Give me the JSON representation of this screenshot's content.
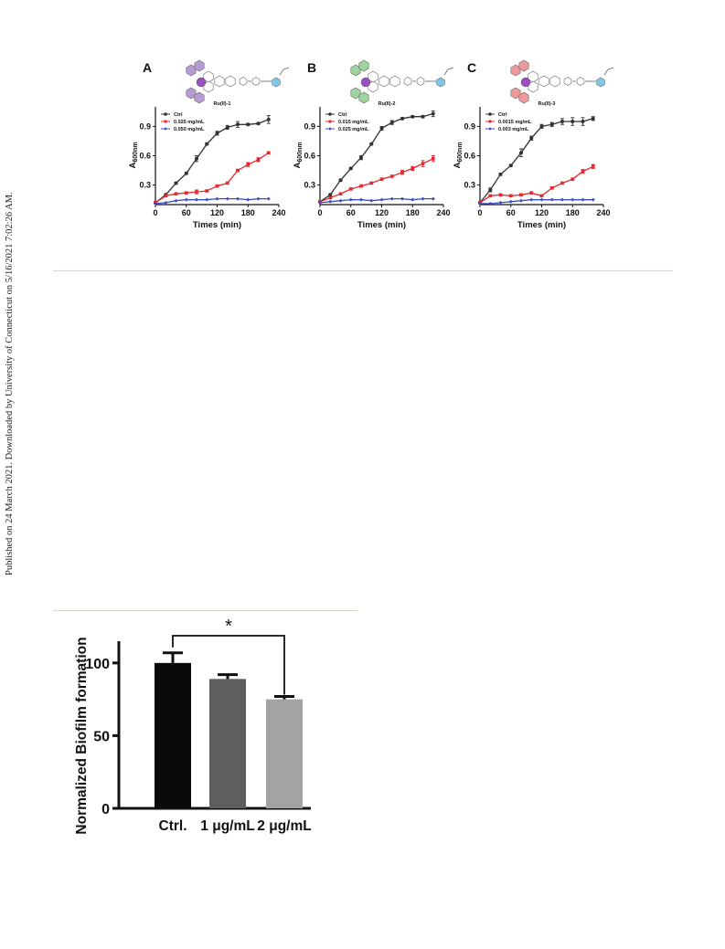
{
  "sidebar": {
    "published_note": "Published on 24 March 2021. Downloaded by University of Connecticut on 5/16/2021 7:02:26 AM."
  },
  "panels": [
    {
      "letter": "A",
      "compound": "Ru(II)-1",
      "lobe_color": "#b69bd4",
      "xlabel": "Times (min)",
      "ylabel": "A",
      "ylabel_sub": "600nm",
      "xticks": [
        "0",
        "60",
        "120",
        "180",
        "240"
      ],
      "yticks": [
        "0.3",
        "0.6",
        "0.9"
      ],
      "legend": [
        "Ctrl",
        "0.025 mg/mL",
        "0.050 mg/mL"
      ]
    },
    {
      "letter": "B",
      "compound": "Ru(II)-2",
      "lobe_color": "#9fd49c",
      "xlabel": "Times (min)",
      "ylabel": "A",
      "ylabel_sub": "600nm",
      "xticks": [
        "0",
        "60",
        "120",
        "180",
        "240"
      ],
      "yticks": [
        "0.3",
        "0.6",
        "0.9"
      ],
      "legend": [
        "Ctrl",
        "0.015 mg/mL",
        "0.025 mg/mL"
      ]
    },
    {
      "letter": "C",
      "compound": "Ru(II)-3",
      "lobe_color": "#ef9a9a",
      "xlabel": "Times (min)",
      "ylabel": "A",
      "ylabel_sub": "600nm",
      "xticks": [
        "0",
        "60",
        "120",
        "180",
        "240"
      ],
      "yticks": [
        "0.3",
        "0.6",
        "0.9"
      ],
      "legend": [
        "Ctrl",
        "0.0015 mg/mL",
        "0.003 mg/mL"
      ]
    }
  ],
  "bar_chart": {
    "ylabel": "Normalized Biofilm formation",
    "yticks": [
      "0",
      "50",
      "100"
    ],
    "categories": [
      "Ctrl.",
      "1 μg/mL",
      "2 μg/mL"
    ],
    "significance": "*"
  },
  "colors": {
    "ctrl": "#333333",
    "low": "#e8282d",
    "high": "#3b4cc0",
    "bar_ctrl": "#0a0a0a",
    "bar_1": "#5e5e5e",
    "bar_2": "#a3a3a6"
  },
  "chart_data": [
    {
      "type": "line",
      "title": "A",
      "xlabel": "Times (min)",
      "ylabel": "A600nm",
      "xlim": [
        0,
        240
      ],
      "ylim": [
        0.1,
        1.1
      ],
      "series": [
        {
          "name": "Ctrl",
          "x": [
            0,
            20,
            40,
            60,
            80,
            100,
            120,
            140,
            160,
            180,
            200,
            220
          ],
          "y": [
            0.12,
            0.2,
            0.32,
            0.42,
            0.57,
            0.72,
            0.83,
            0.89,
            0.92,
            0.92,
            0.93,
            0.97
          ],
          "err": [
            0.01,
            0.01,
            0.01,
            0.01,
            0.03,
            0.01,
            0.02,
            0.02,
            0.03,
            0.01,
            0.01,
            0.04
          ]
        },
        {
          "name": "0.025 mg/mL",
          "x": [
            0,
            20,
            40,
            60,
            80,
            100,
            120,
            140,
            160,
            180,
            200,
            220
          ],
          "y": [
            0.12,
            0.19,
            0.21,
            0.22,
            0.23,
            0.24,
            0.29,
            0.32,
            0.45,
            0.51,
            0.56,
            0.63
          ],
          "err": [
            0.01,
            0.01,
            0.01,
            0.01,
            0.02,
            0.01,
            0.01,
            0.01,
            0.01,
            0.02,
            0.02,
            0.01
          ]
        },
        {
          "name": "0.050 mg/mL",
          "x": [
            0,
            20,
            40,
            60,
            80,
            100,
            120,
            140,
            160,
            180,
            200,
            220
          ],
          "y": [
            0.11,
            0.12,
            0.14,
            0.15,
            0.15,
            0.15,
            0.16,
            0.16,
            0.16,
            0.15,
            0.16,
            0.16
          ],
          "err": [
            0,
            0,
            0,
            0,
            0,
            0,
            0,
            0,
            0,
            0,
            0,
            0
          ]
        }
      ],
      "legend": [
        "Ctrl",
        "0.025 mg/mL",
        "0.050 mg/mL"
      ]
    },
    {
      "type": "line",
      "title": "B",
      "xlabel": "Times (min)",
      "ylabel": "A600nm",
      "xlim": [
        0,
        240
      ],
      "ylim": [
        0.1,
        1.1
      ],
      "series": [
        {
          "name": "Ctrl",
          "x": [
            0,
            20,
            40,
            60,
            80,
            100,
            120,
            140,
            160,
            180,
            200,
            220
          ],
          "y": [
            0.13,
            0.2,
            0.35,
            0.47,
            0.58,
            0.72,
            0.88,
            0.94,
            0.98,
            1.0,
            1.0,
            1.03
          ],
          "err": [
            0.01,
            0.01,
            0.01,
            0.01,
            0.02,
            0.01,
            0.02,
            0.02,
            0.01,
            0.01,
            0.01,
            0.03
          ]
        },
        {
          "name": "0.015 mg/mL",
          "x": [
            0,
            20,
            40,
            60,
            80,
            100,
            120,
            140,
            160,
            180,
            200,
            220
          ],
          "y": [
            0.13,
            0.17,
            0.21,
            0.26,
            0.29,
            0.32,
            0.36,
            0.39,
            0.43,
            0.47,
            0.52,
            0.57
          ],
          "err": [
            0.01,
            0.01,
            0.01,
            0.01,
            0.01,
            0.01,
            0.01,
            0.01,
            0.02,
            0.02,
            0.03,
            0.03
          ]
        },
        {
          "name": "0.025 mg/mL",
          "x": [
            0,
            20,
            40,
            60,
            80,
            100,
            120,
            140,
            160,
            180,
            200,
            220
          ],
          "y": [
            0.12,
            0.13,
            0.14,
            0.15,
            0.15,
            0.14,
            0.15,
            0.16,
            0.16,
            0.15,
            0.16,
            0.16
          ],
          "err": [
            0,
            0,
            0,
            0,
            0,
            0,
            0,
            0,
            0,
            0,
            0,
            0
          ]
        }
      ],
      "legend": [
        "Ctrl",
        "0.015 mg/mL",
        "0.025 mg/mL"
      ]
    },
    {
      "type": "line",
      "title": "C",
      "xlabel": "Times (min)",
      "ylabel": "A600nm",
      "xlim": [
        0,
        240
      ],
      "ylim": [
        0.1,
        1.1
      ],
      "series": [
        {
          "name": "Ctrl",
          "x": [
            0,
            20,
            40,
            60,
            80,
            100,
            120,
            140,
            160,
            180,
            200,
            220
          ],
          "y": [
            0.12,
            0.25,
            0.41,
            0.5,
            0.63,
            0.78,
            0.9,
            0.92,
            0.95,
            0.95,
            0.95,
            0.98
          ],
          "err": [
            0.01,
            0.02,
            0.01,
            0.01,
            0.04,
            0.02,
            0.02,
            0.02,
            0.03,
            0.04,
            0.04,
            0.02
          ]
        },
        {
          "name": "0.0015 mg/mL",
          "x": [
            0,
            20,
            40,
            60,
            80,
            100,
            120,
            140,
            160,
            180,
            200,
            220
          ],
          "y": [
            0.12,
            0.19,
            0.2,
            0.19,
            0.2,
            0.22,
            0.19,
            0.27,
            0.32,
            0.36,
            0.44,
            0.49
          ],
          "err": [
            0.01,
            0.01,
            0.01,
            0.01,
            0.01,
            0.01,
            0.01,
            0.01,
            0.01,
            0.01,
            0.02,
            0.02
          ]
        },
        {
          "name": "0.003 mg/mL",
          "x": [
            0,
            20,
            40,
            60,
            80,
            100,
            120,
            140,
            160,
            180,
            200,
            220
          ],
          "y": [
            0.11,
            0.11,
            0.12,
            0.13,
            0.14,
            0.15,
            0.15,
            0.15,
            0.15,
            0.15,
            0.15,
            0.15
          ],
          "err": [
            0,
            0,
            0,
            0,
            0,
            0,
            0,
            0,
            0,
            0,
            0,
            0
          ]
        }
      ],
      "legend": [
        "Ctrl",
        "0.0015 mg/mL",
        "0.003 mg/mL"
      ]
    },
    {
      "type": "bar",
      "categories": [
        "Ctrl.",
        "1 μg/mL",
        "2 μg/mL"
      ],
      "values": [
        100,
        89,
        75
      ],
      "err": [
        7,
        3,
        2
      ],
      "ylabel": "Normalized Biofilm formation",
      "ylim": [
        0,
        120
      ],
      "significance": {
        "between": [
          "Ctrl.",
          "2 μg/mL"
        ],
        "label": "*"
      }
    }
  ]
}
